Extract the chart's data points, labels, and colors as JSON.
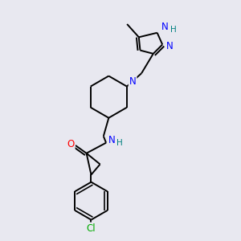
{
  "bg_color": "#e8e8f0",
  "bond_color": "#000000",
  "atom_colors": {
    "N": "#0000ff",
    "O": "#ff0000",
    "Cl": "#00aa00",
    "NH": "#008080",
    "C": "#000000"
  },
  "font_size": 8.5,
  "line_width": 1.4
}
